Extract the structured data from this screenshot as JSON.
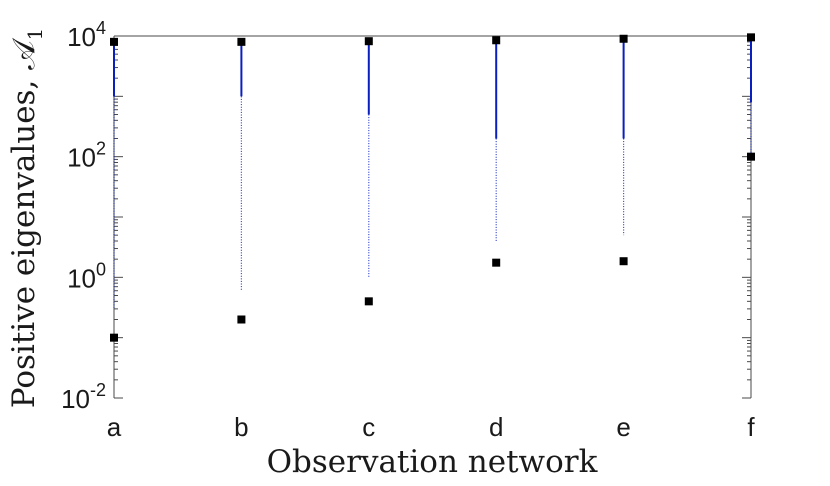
{
  "chart_data": {
    "type": "scatter",
    "title": "",
    "xlabel": "Observation network",
    "ylabel": "Positive eigenvalues, 𝒜",
    "ylabel_subscript": "1",
    "yscale": "log",
    "ylim": [
      0.01,
      10000
    ],
    "categories": [
      "a",
      "b",
      "c",
      "d",
      "e",
      "f"
    ],
    "y_ticks": [
      {
        "value": 0.01,
        "base": "10",
        "exp": "-2"
      },
      {
        "value": 1,
        "base": "10",
        "exp": "0"
      },
      {
        "value": 100,
        "base": "10",
        "exp": "2"
      },
      {
        "value": 10000,
        "base": "10",
        "exp": "4"
      }
    ],
    "grid": false,
    "series": [
      {
        "marker": "square",
        "color": "#000000",
        "points": [
          {
            "x": "a",
            "y": 8000
          },
          {
            "x": "a",
            "y": 0.1
          },
          {
            "x": "b",
            "y": 8000
          },
          {
            "x": "b",
            "y": 0.2
          },
          {
            "x": "c",
            "y": 8200
          },
          {
            "x": "c",
            "y": 0.4
          },
          {
            "x": "d",
            "y": 8500
          },
          {
            "x": "d",
            "y": 1.75
          },
          {
            "x": "e",
            "y": 9000
          },
          {
            "x": "e",
            "y": 1.85
          },
          {
            "x": "f",
            "y": 9500
          },
          {
            "x": "f",
            "y": 100
          }
        ]
      },
      {
        "marker": "line",
        "color": "#0a1fbf",
        "ranges": [
          {
            "x": "a",
            "dense_min": 1000,
            "sparse_min": 0.3,
            "max": 8000
          },
          {
            "x": "b",
            "dense_min": 1000,
            "sparse_min": 0.6,
            "max": 8000
          },
          {
            "x": "c",
            "dense_min": 500,
            "sparse_min": 1.0,
            "max": 8200
          },
          {
            "x": "d",
            "dense_min": 200,
            "sparse_min": 4.0,
            "max": 8500
          },
          {
            "x": "e",
            "dense_min": 200,
            "sparse_min": 5.0,
            "max": 9000
          },
          {
            "x": "f",
            "dense_min": 800,
            "sparse_min": 100,
            "max": 9500
          }
        ]
      }
    ]
  }
}
